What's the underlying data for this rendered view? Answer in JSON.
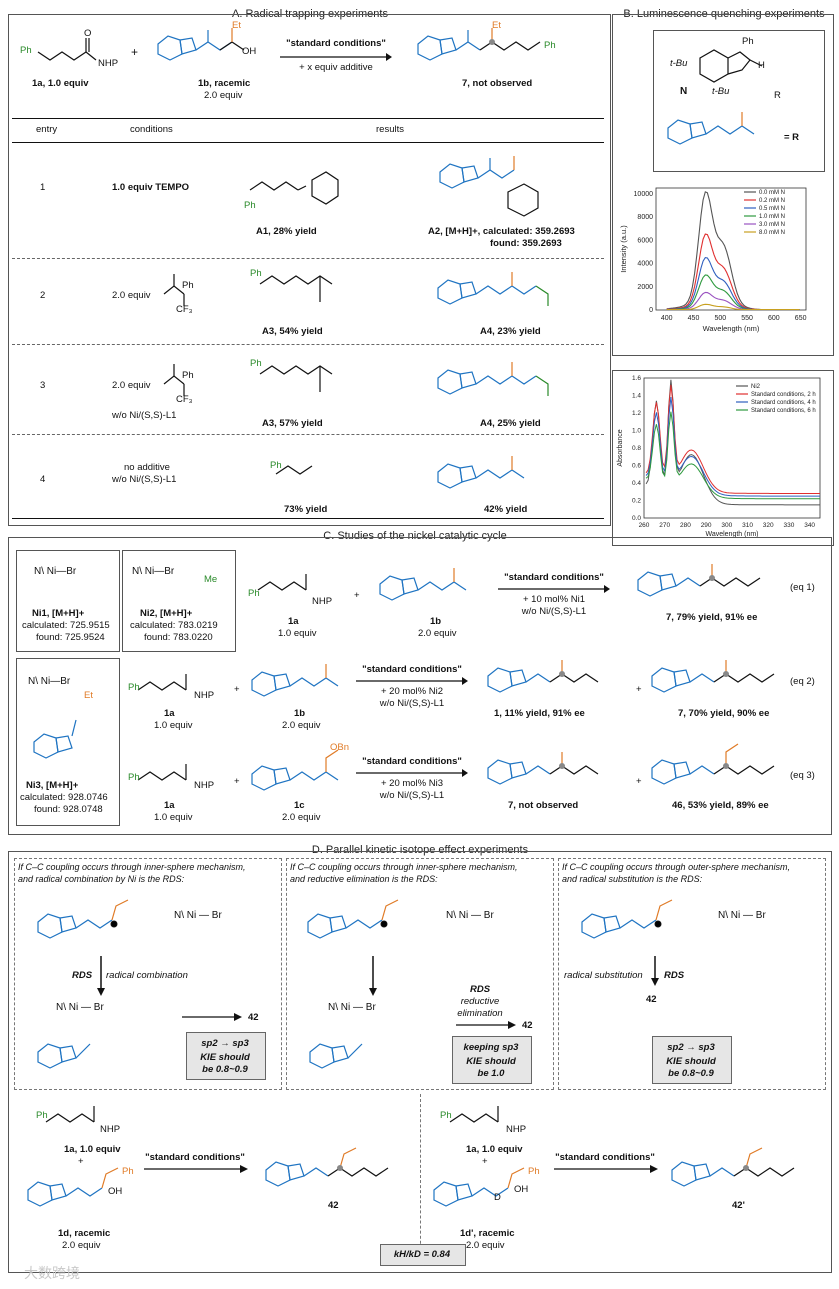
{
  "sectionA": {
    "title": "A. Radical trapping experiments",
    "reactant1_label": "1a, 1.0 equiv",
    "reactant1_nhp": "NHP",
    "reactant1_ph": "Ph",
    "plus": "+",
    "reactant2_label": "1b, racemic",
    "reactant2_equiv": "2.0 equiv",
    "reactant2_et": "Et",
    "reactant2_oh": "OH",
    "arrow_top": "\"standard conditions\"",
    "arrow_bottom": "+ x equiv additive",
    "product_label": "7, not observed",
    "product_et": "Et",
    "product_ph": "Ph",
    "headers": [
      "entry",
      "conditions",
      "results"
    ],
    "rows": [
      {
        "entry": "1",
        "conditions": "1.0 equiv TEMPO",
        "conditions2": "",
        "left_label": "A1, 28% yield",
        "right_label": "A2, [M+H]+, calculated: 359.2693",
        "right_label2": "found: 359.2693"
      },
      {
        "entry": "2",
        "conditions": "2.0 equiv",
        "conditions2": "",
        "left_label": "A3, 54% yield",
        "right_label": "A4, 23% yield",
        "right_label2": ""
      },
      {
        "entry": "3",
        "conditions": "2.0 equiv",
        "conditions2": "w/o Ni/(S,S)-L1",
        "left_label": "A3, 57% yield",
        "right_label": "A4, 25% yield",
        "right_label2": ""
      },
      {
        "entry": "4",
        "conditions": "no additive",
        "conditions2": "w/o Ni/(S,S)-L1",
        "left_label": "73% yield",
        "right_label": "42% yield",
        "right_label2": ""
      }
    ]
  },
  "sectionB": {
    "title": "B. Luminescence quenching experiments",
    "n_label": "N",
    "r_label": "= R",
    "tbu1": "t-Bu",
    "tbu2": "t-Bu",
    "ph": "Ph",
    "o_r": "R",
    "h": "H"
  },
  "chart_data": [
    {
      "type": "line",
      "title": "",
      "xlabel": "Wavelength (nm)",
      "ylabel": "Intensity (a.u.)",
      "xlim": [
        380,
        660
      ],
      "ylim": [
        0,
        10500
      ],
      "xticks": [
        400,
        450,
        500,
        550,
        600,
        650
      ],
      "yticks": [
        0,
        2000,
        4000,
        6000,
        8000,
        10000
      ],
      "legend_position": "top-right",
      "series": [
        {
          "name": "0.0 mM N",
          "color": "#555555",
          "peak": 9500,
          "tail": 1500
        },
        {
          "name": "0.2 mM N",
          "color": "#e03030",
          "peak": 6100,
          "tail": 1000
        },
        {
          "name": "0.5 mM N",
          "color": "#2f5fbf",
          "peak": 4200,
          "tail": 700
        },
        {
          "name": "1.0 mM N",
          "color": "#2f9a3f",
          "peak": 2800,
          "tail": 480
        },
        {
          "name": "3.0 mM N",
          "color": "#9a52c0",
          "peak": 1400,
          "tail": 260
        },
        {
          "name": "8.0 mM N",
          "color": "#c8a020",
          "peak": 450,
          "tail": 90
        }
      ]
    },
    {
      "type": "line",
      "title": "",
      "xlabel": "Wavelength (nm)",
      "ylabel": "Absorbance",
      "xlim": [
        260,
        345
      ],
      "ylim": [
        0,
        1.6
      ],
      "xticks": [
        260,
        270,
        280,
        290,
        300,
        310,
        320,
        330,
        340
      ],
      "yticks": [
        0.0,
        0.2,
        0.4,
        0.6,
        0.8,
        1.0,
        1.2,
        1.4,
        1.6
      ],
      "legend_position": "top-right",
      "series": [
        {
          "name": "Ni2",
          "color": "#555555",
          "scale": 1.0,
          "tail": 0.15
        },
        {
          "name": "Standard conditions, 2 h",
          "color": "#e03030",
          "scale": 0.86,
          "tail": 0.28
        },
        {
          "name": "Standard conditions, 4 h",
          "color": "#2f5fbf",
          "scale": 0.78,
          "tail": 0.25
        },
        {
          "name": "Standard conditions, 6 h",
          "color": "#2f9a3f",
          "scale": 0.68,
          "tail": 0.22
        }
      ]
    }
  ],
  "sectionC": {
    "title": "C. Studies of the nickel catalytic cycle",
    "ni1_name": "Ni1, [M+H]+",
    "ni1_calc": "calculated: 725.9515",
    "ni1_found": "found: 725.9524",
    "ni2_name": "Ni2, [M+H]+",
    "ni2_calc": "calculated: 783.0219",
    "ni2_found": "found: 783.0220",
    "ni3_name": "Ni3, [M+H]+",
    "ni3_calc": "calculated: 928.0746",
    "ni3_found": "found: 928.0748",
    "eq1": {
      "arrow_top": "\"standard conditions\"",
      "arrow_mid": "+ 10 mol% Ni1",
      "arrow_bot": "w/o Ni/(S,S)-L1",
      "r1": "1a",
      "r1e": "1.0 equiv",
      "r2": "1b",
      "r2e": "2.0 equiv",
      "p": "7, 79% yield, 91% ee",
      "tag": "(eq 1)"
    },
    "eq2": {
      "arrow_top": "\"standard conditions\"",
      "arrow_mid": "+ 20 mol% Ni2",
      "arrow_bot": "w/o Ni/(S,S)-L1",
      "r1": "1a",
      "r1e": "1.0 equiv",
      "r2": "1b",
      "r2e": "2.0 equiv",
      "p1": "1, 11% yield, 91% ee",
      "p2": "7, 70% yield, 90% ee",
      "tag": "(eq 2)"
    },
    "eq3": {
      "arrow_top": "\"standard conditions\"",
      "arrow_mid": "+ 20 mol% Ni3",
      "arrow_bot": "w/o Ni/(S,S)-L1",
      "r1": "1a",
      "r1e": "1.0 equiv",
      "r2": "1c",
      "r2e": "2.0 equiv",
      "p1": "7, not observed",
      "p2": "46, 53% yield, 89% ee",
      "tag": "(eq 3)"
    }
  },
  "sectionD": {
    "title": "D. Parallel kinetic isotope effect experiments",
    "p1_line1": "If C–C coupling occurs through inner-sphere mechanism,",
    "p1_line2": "and radical combination by Ni is the RDS:",
    "p2_line1": "If C–C coupling occurs through inner-sphere mechanism,",
    "p2_line2": "and reductive elimination is the RDS:",
    "p3_line1": "If C–C coupling occurs through outer-sphere mechanism,",
    "p3_line2": "and radical substitution is the RDS:",
    "rds": "RDS",
    "radical_combination": "radical combination",
    "reductive": "reductive",
    "elimination": "elimination",
    "radical_substitution": "radical substitution",
    "product": "42",
    "box1_line1": "sp2 → sp3",
    "box1_line2": "KIE should",
    "box1_line3": "be 0.8~0.9",
    "box2_line1": "keeping sp3",
    "box2_line2": "KIE should",
    "box2_line3": "be 1.0",
    "box3_line1": "sp2 → sp3",
    "box3_line2": "KIE should",
    "box3_line3": "be 0.8~0.9",
    "left_r1": "1a, 1.0 equiv",
    "left_r2": "1d, racemic",
    "left_r2e": "2.0 equiv",
    "left_arrow": "\"standard conditions\"",
    "left_p": "42",
    "right_r1": "1a, 1.0 equiv",
    "right_r2": "1d', racemic",
    "right_r2e": "2.0 equiv",
    "right_arrow": "\"standard conditions\"",
    "right_p": "42'",
    "kie": "kH/kD = 0.84",
    "watermark": "大数跨境"
  }
}
